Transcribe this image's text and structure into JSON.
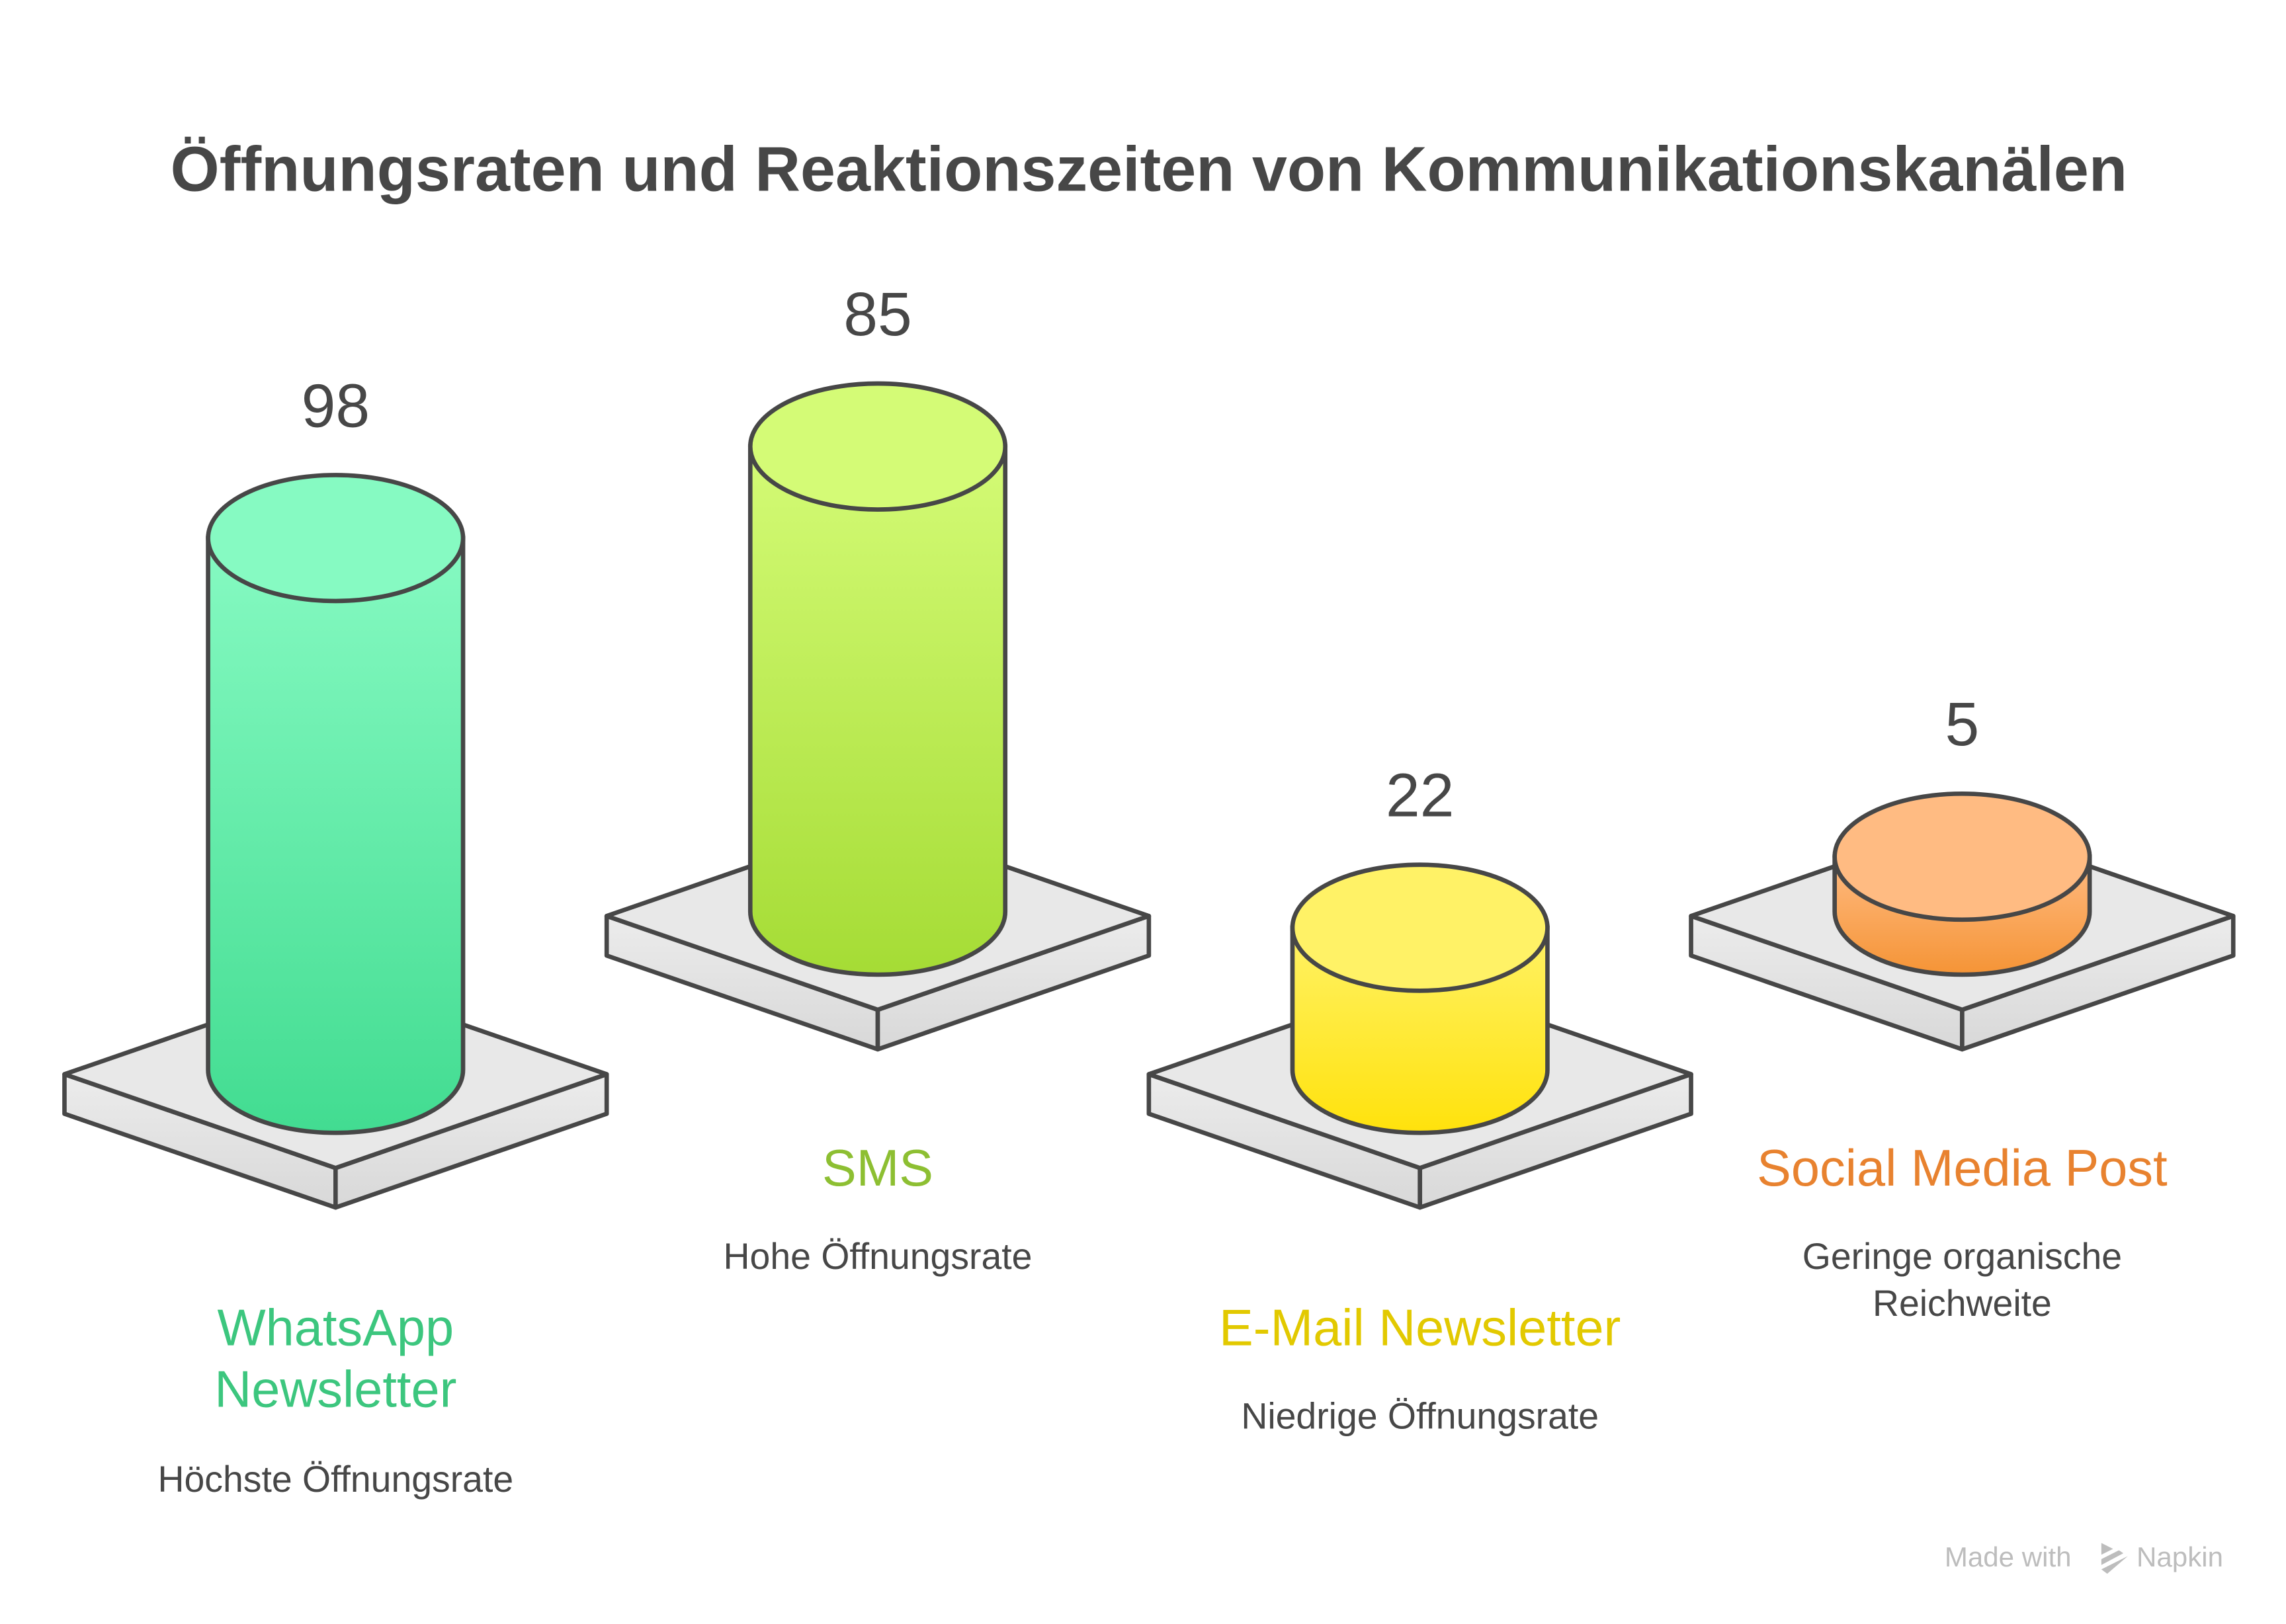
{
  "chart_data": {
    "type": "bar",
    "title": "Öffnungsraten und Reaktionszeiten von Kommunikationskanälen",
    "categories": [
      "WhatsApp Newsletter",
      "SMS",
      "E-Mail Newsletter",
      "Social Media Post"
    ],
    "values": [
      98,
      85,
      22,
      5
    ],
    "value_labels": [
      "98",
      "85",
      "22",
      "5"
    ],
    "descriptions": [
      [
        "Höchste Öffnungsrate"
      ],
      [
        "Hohe Öffnungsrate"
      ],
      [
        "Niedrige Öffnungsrate"
      ],
      [
        "Geringe organische",
        "Reichweite"
      ]
    ],
    "category_lines": [
      [
        "WhatsApp",
        "Newsletter"
      ],
      [
        "SMS"
      ],
      [
        "E-Mail Newsletter"
      ],
      [
        "Social Media Post"
      ]
    ],
    "colors": {
      "label": [
        "#3cc67e",
        "#8dbf32",
        "#e2c900",
        "#e8822f"
      ],
      "top": [
        "#86fac2",
        "#d4fb76",
        "#fff266",
        "#ffbb82"
      ],
      "bottom": [
        "#42dc91",
        "#a5dc35",
        "#ffe20c",
        "#f59436"
      ]
    },
    "style": "3d-cylinders-on-isometric-plates",
    "grid": false,
    "legend": "none"
  },
  "watermark": {
    "prefix": "Made with",
    "brand": "Napkin"
  }
}
